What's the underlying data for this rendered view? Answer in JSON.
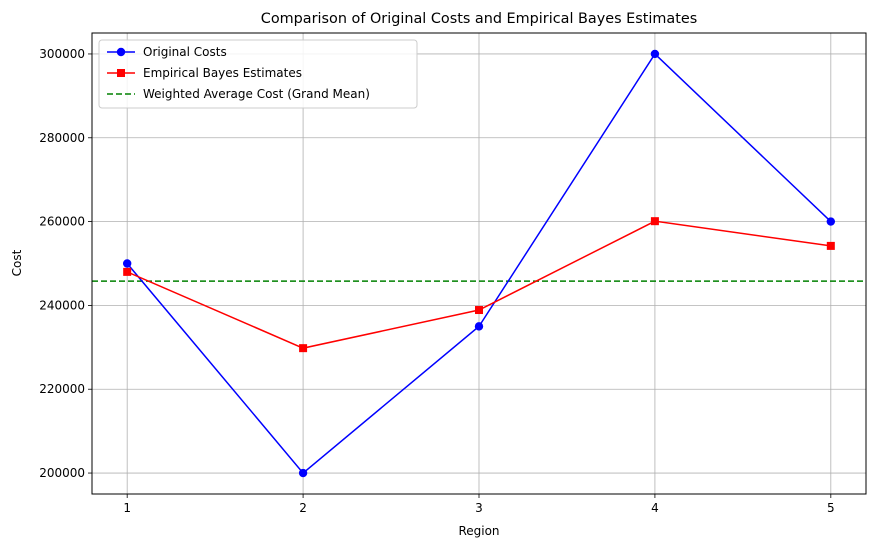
{
  "chart_data": {
    "type": "line",
    "title": "Comparison of Original Costs and Empirical Bayes Estimates",
    "xlabel": "Region",
    "ylabel": "Cost",
    "x": [
      1,
      2,
      3,
      4,
      5
    ],
    "xlim": [
      0.8,
      5.2
    ],
    "ylim": [
      195000,
      305000
    ],
    "xticks": [
      "1",
      "2",
      "3",
      "4",
      "5"
    ],
    "yticks": [
      "200000",
      "220000",
      "240000",
      "260000",
      "280000",
      "300000"
    ],
    "grid": true,
    "legend_position": "upper-left",
    "series": [
      {
        "name": "Original Costs",
        "color": "#0000ff",
        "marker": "circle",
        "values": [
          250000,
          200000,
          235000,
          300000,
          260000
        ]
      },
      {
        "name": "Empirical Bayes Estimates",
        "color": "#ff0000",
        "marker": "square",
        "values": [
          248000,
          229800,
          238900,
          260100,
          254200
        ]
      }
    ],
    "reference_lines": [
      {
        "name": "Weighted Average Cost (Grand Mean)",
        "color": "#008000",
        "style": "dashed",
        "y": 245800
      }
    ]
  }
}
